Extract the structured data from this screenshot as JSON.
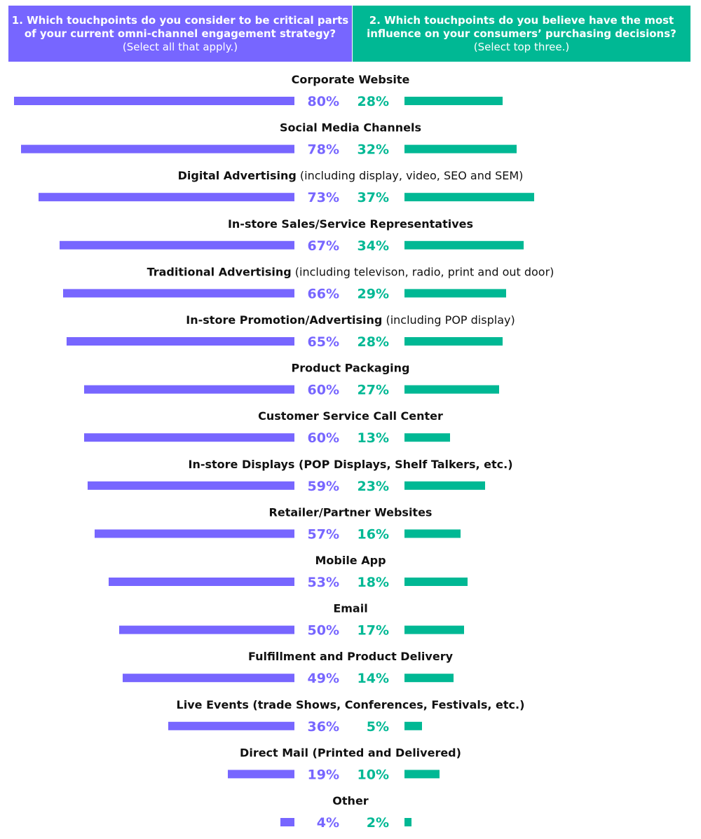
{
  "colors": {
    "left": "#7766ff",
    "right": "#00b894",
    "label": "#111111"
  },
  "header": {
    "left_bold": "1. Which touchpoints do you consider to be critical parts of your current omni-channel engagement strategy?",
    "left_plain": "(Select all that apply.)",
    "right_bold": "2. Which touchpoints do you believe have the most influence on your consumers’ purchasing decisions?",
    "right_plain": "(Select top three.)"
  },
  "chart_data": {
    "type": "bar",
    "categories": [
      "Corporate Website",
      "Social Media Channels",
      "Digital Advertising (including display, video, SEO and SEM)",
      "In-store Sales/Service Representatives",
      "Traditional Advertising (including televison, radio, print and out door)",
      "In-store Promotion/Advertising (including POP display)",
      "Product Packaging",
      "Customer Service Call Center",
      "In-store Displays (POP Displays, Shelf Talkers, etc.)",
      "Retailer/Partner Websites",
      "Mobile App",
      "Email",
      "Fulfillment and Product Delivery",
      "Live Events (trade Shows, Conferences, Festivals, etc.)",
      "Direct Mail (Printed and Delivered)",
      "Other"
    ],
    "category_parts": [
      {
        "bold": "Corporate Website",
        "note": ""
      },
      {
        "bold": "Social Media Channels",
        "note": ""
      },
      {
        "bold": "Digital Advertising",
        "note": " (including display, video, SEO and SEM)"
      },
      {
        "bold": "In-store Sales/Service Representatives",
        "note": ""
      },
      {
        "bold": "Traditional Advertising",
        "note": " (including televison, radio, print and out door)"
      },
      {
        "bold": "In-store Promotion/Advertising",
        "note": " (including POP display)"
      },
      {
        "bold": "Product Packaging",
        "note": ""
      },
      {
        "bold": "Customer Service Call Center",
        "note": ""
      },
      {
        "bold": "In-store Displays (POP Displays, Shelf Talkers, etc.)",
        "note": ""
      },
      {
        "bold": "Retailer/Partner Websites",
        "note": ""
      },
      {
        "bold": "Mobile App",
        "note": ""
      },
      {
        "bold": "Email",
        "note": ""
      },
      {
        "bold": "Fulfillment and Product Delivery",
        "note": ""
      },
      {
        "bold": "Live Events (trade Shows, Conferences, Festivals, etc.)",
        "note": ""
      },
      {
        "bold": "Direct Mail (Printed and Delivered)",
        "note": ""
      },
      {
        "bold": "Other",
        "note": ""
      }
    ],
    "series": [
      {
        "values": [
          80,
          78,
          73,
          67,
          66,
          65,
          60,
          60,
          59,
          57,
          53,
          50,
          49,
          36,
          19,
          4
        ]
      },
      {
        "values": [
          28,
          32,
          37,
          34,
          29,
          28,
          27,
          13,
          23,
          16,
          18,
          17,
          14,
          5,
          10,
          2
        ]
      }
    ],
    "value_suffix": "%"
  }
}
